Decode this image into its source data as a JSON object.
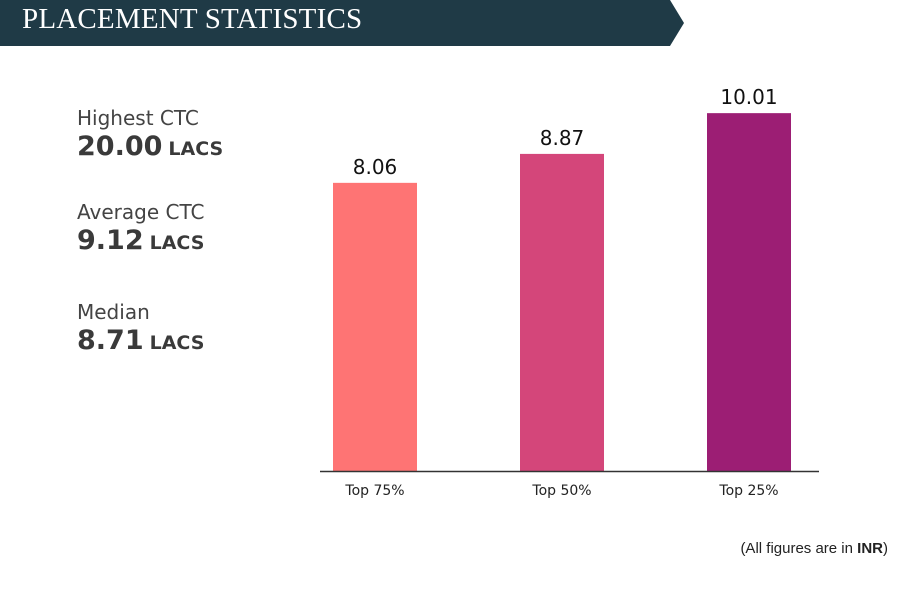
{
  "header": {
    "title": "PLACEMENT STATISTICS",
    "color": "#1f3a46"
  },
  "stats": [
    {
      "label": "Highest CTC",
      "value": "20.00",
      "unit": "LACS"
    },
    {
      "label": "Average CTC",
      "value": "9.12",
      "unit": "LACS"
    },
    {
      "label": "Median",
      "value": "8.71",
      "unit": "LACS"
    }
  ],
  "chart_data": {
    "type": "bar",
    "categories": [
      "Top 75%",
      "Top 50%",
      "Top 25%"
    ],
    "values": [
      8.06,
      8.87,
      10.01
    ],
    "data_labels": [
      "8.06",
      "8.87",
      "10.01"
    ],
    "colors": [
      "#fe7474",
      "#d4467a",
      "#9c1e74"
    ],
    "grid": false,
    "title": "",
    "xlabel": "",
    "ylabel": ""
  },
  "footnote": {
    "prefix": "(All figures are in ",
    "emphasis": "INR",
    "suffix": ")"
  }
}
